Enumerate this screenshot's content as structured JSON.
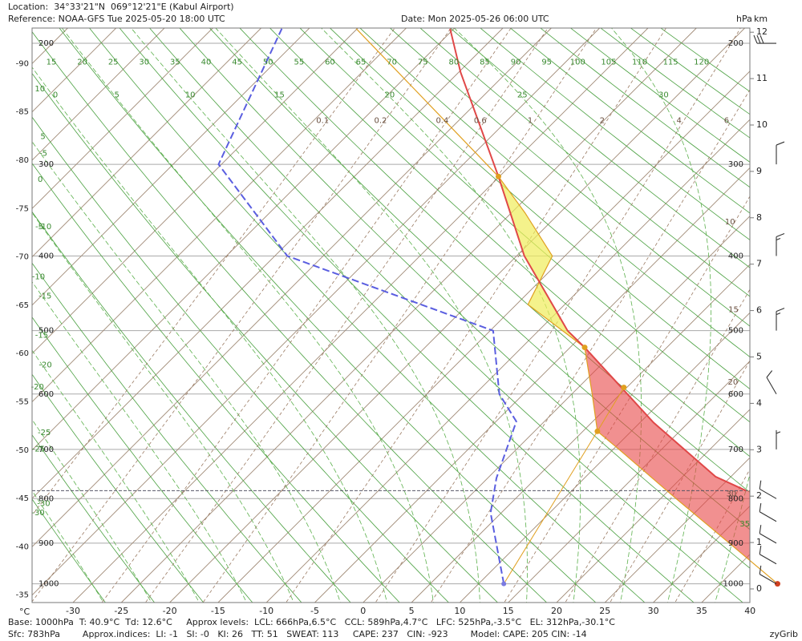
{
  "header": {
    "location": "Location:  34°33'21\"N  069°12'21\"E (Kabul Airport)",
    "reference": "Reference: NOAA-GFS Tue 2025-05-20 18:00 UTC",
    "date": "Date: Mon 2025-05-26 06:00 UTC"
  },
  "footer": {
    "line1": "Base: 1000hPa  T: 40.9°C  Td: 12.6°C     Approx levels:  LCL: 666hPa,6.5°C   CCL: 589hPa,4.7°C   LFC: 525hPa,-3.5°C   EL: 312hPa,-30.1°C",
    "line2": "Sfc: 783hPa        Approx.indices:  LI: -1   SI: -0   KI: 26   TT: 51   SWEAT: 113     CAPE: 237   CIN: -923        Model: CAPE: 205 CIN: -14"
  },
  "brand": "zyGrib",
  "diagram": {
    "temperature_unit": "°C",
    "pressure_unit": "hPa",
    "height_unit": "km",
    "temperature_ticks": [
      -30,
      -25,
      -20,
      -15,
      -10,
      -5,
      0,
      5,
      10,
      15,
      20,
      25,
      30,
      35,
      40
    ],
    "left_isotherm_labels": [
      -90,
      -85,
      -80,
      -75,
      -70,
      -65,
      -60,
      -55,
      -50,
      -45,
      -40,
      -35
    ],
    "pressure_levels": [
      1000,
      900,
      800,
      700,
      600,
      500,
      400,
      300,
      200
    ],
    "height_ticks": [
      0,
      1,
      2,
      3,
      4,
      5,
      6,
      7,
      8,
      9,
      10,
      11,
      12
    ],
    "dry_adiabats": [
      -30,
      -25,
      -20,
      -15,
      -10,
      -5,
      0,
      5,
      10,
      15,
      20,
      25,
      30,
      35,
      40,
      45,
      50,
      55,
      60,
      65,
      70,
      75,
      80,
      85,
      90,
      95,
      100,
      105,
      110,
      115,
      120
    ],
    "moist_adiabats": [
      -30,
      -25,
      -20,
      -15,
      -10,
      -5,
      0,
      5,
      10,
      15,
      20,
      25,
      30,
      35
    ],
    "mixing_ratios": [
      0.1,
      0.2,
      0.4,
      0.6,
      1,
      2,
      4,
      6,
      10,
      15,
      20,
      30
    ],
    "surface_pressure": 783,
    "temperature_profile": {
      "pressure": [
        783,
        754,
        650,
        525,
        500,
        400,
        312,
        221,
        190
      ],
      "temperature": [
        28,
        23.4,
        11.4,
        -3.5,
        -7,
        -19.2,
        -30.1,
        -44.8,
        -50.4
      ]
    },
    "dewpoint_profile": {
      "pressure": [
        1000,
        831,
        757,
        648,
        600,
        500,
        400,
        300,
        190
      ],
      "temperature": [
        12.6,
        3.9,
        0.9,
        -2.9,
        -7.5,
        -14.7,
        -43.7,
        -60.3,
        -67.8
      ]
    },
    "parcel": {
      "pressure": [
        1000,
        900,
        800,
        700,
        666,
        600,
        525,
        463,
        400,
        350,
        312,
        190
      ],
      "temperature": [
        40.9,
        31.7,
        21.6,
        10.6,
        6.5,
        2.1,
        -3.5,
        -13.8,
        -16.3,
        -23.6,
        -30.1,
        -60.1
      ]
    },
    "dewpoint_mixing_line": {
      "pressure": [
        1000,
        666,
        589
      ],
      "temperature": [
        12.6,
        6.5,
        4.7
      ]
    },
    "levels": {
      "LCL": {
        "pressure": 666,
        "temperature": 6.5
      },
      "CCL": {
        "pressure": 589,
        "temperature": 4.7
      },
      "LFC": {
        "pressure": 525,
        "temperature": -3.5
      },
      "EL": {
        "pressure": 312,
        "temperature": -30.1
      }
    },
    "winds": {
      "pressure": [
        200,
        300,
        400,
        500,
        600,
        700,
        800,
        850,
        900,
        950,
        1000
      ],
      "speed": [
        30,
        10,
        15,
        15,
        10,
        5,
        10,
        10,
        10,
        10,
        10
      ],
      "direction": [
        270,
        360,
        360,
        360,
        330,
        360,
        300,
        300,
        300,
        300,
        300
      ]
    }
  }
}
